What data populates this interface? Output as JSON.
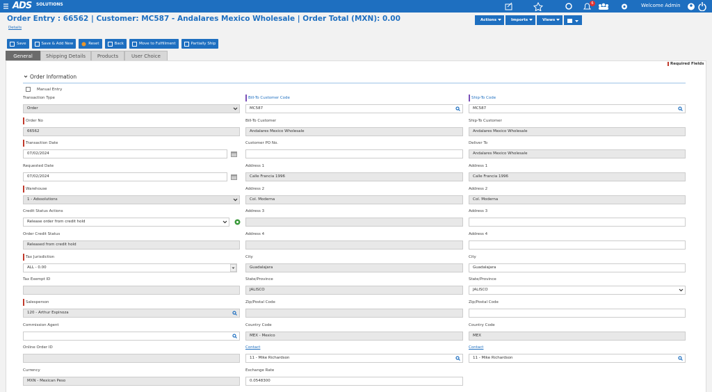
{
  "top_bar": {
    "logo": "ADS",
    "logo_sub": "SOLUTIONS",
    "notification_count": "6",
    "welcome": "Welcome Admin"
  },
  "header": {
    "title": "Order Entry : 66562 | Customer: MC587 - Andalares Mexico Wholesale | Order Total (MXN): 0.00",
    "details_link": "Details",
    "menus": [
      "Actions",
      "Imports",
      "Views"
    ]
  },
  "toolbar": [
    "Save",
    "Save & Add New",
    "Reset",
    "Back",
    "Move to Fulfillment",
    "Partially Ship"
  ],
  "tabs": [
    "General",
    "Shipping Details",
    "Products",
    "User Choice"
  ],
  "required_note": "Required Fields",
  "section": {
    "title": "Order Information",
    "manual_entry": "Manual Entry"
  },
  "columns": [
    [
      {
        "label": "Transaction Type",
        "value": "Order"
      },
      {
        "label": "Order No",
        "value": "66562"
      },
      {
        "label": "Transaction Date",
        "value": "07/02/2024"
      },
      {
        "label": "Requested Date",
        "value": "07/02/2024"
      },
      {
        "label": "Warehouse",
        "value": "1 - Adssolutions"
      },
      {
        "label": "Credit Status Actions",
        "value": "Release order from credit hold"
      },
      {
        "label": "Order Credit Status",
        "value": "Released from credit hold"
      },
      {
        "label": "Tax Jurisdiction",
        "value": "ALL - 0.00"
      },
      {
        "label": "Tax Exempt ID"
      },
      {
        "label": "Salesperson",
        "value": "120 - Arthur Espinoza"
      },
      {
        "label": "Commission Agent"
      },
      {
        "label": "Online Order ID"
      },
      {
        "label": "Currency",
        "value": "MXN - Mexican Peso"
      }
    ],
    [
      {
        "label": "Bill-To Customer Code",
        "value": "MC587"
      },
      {
        "label": "Bill-To Customer",
        "value": "Andalares Mexico Wholesale"
      },
      {
        "label": "Customer PO No."
      },
      {
        "label": "Address 1",
        "value": "Calle Francia 1996"
      },
      {
        "label": "Address 2",
        "value": "Col. Moderna"
      },
      {
        "label": "Address 3"
      },
      {
        "label": "Address 4"
      },
      {
        "label": "City",
        "value": "Guadalajara"
      },
      {
        "label": "State/Province",
        "value": "JALISCO"
      },
      {
        "label": "Zip/Postal Code"
      },
      {
        "label": "Country Code",
        "value": "MEX - Mexico"
      },
      {
        "label": "Contact",
        "value": "11 - Mike  Richardson"
      },
      {
        "label": "Exchange Rate",
        "value": "0.0548300"
      }
    ],
    [
      {
        "label": "Ship-To Code",
        "value": "MC587"
      },
      {
        "label": "Ship-To Customer",
        "value": "Andalares Mexico Wholesale"
      },
      {
        "label": "Deliver To",
        "value": "Andalares Mexico Wholesale"
      },
      {
        "label": "Address 1",
        "value": "Calle Francia 1996"
      },
      {
        "label": "Address 2",
        "value": "Col. Moderna"
      },
      {
        "label": "Address 3"
      },
      {
        "label": "Address 4"
      },
      {
        "label": "City",
        "value": "Guadalajara"
      },
      {
        "label": "State/Province",
        "value": "JALISCO"
      },
      {
        "label": "Zip/Postal Code"
      },
      {
        "label": "Country Code",
        "value": "MEX"
      },
      {
        "label": "Contact",
        "value": "11 - Mike  Richardson"
      }
    ]
  ]
}
